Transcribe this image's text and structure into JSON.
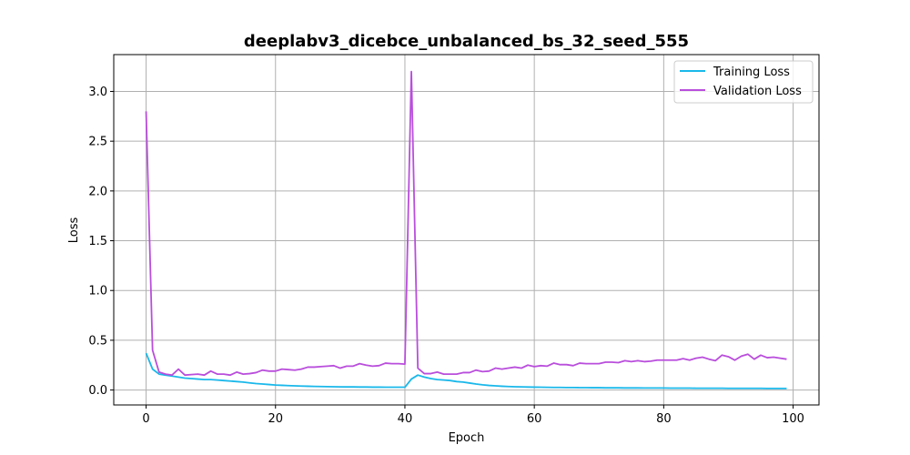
{
  "chart_data": {
    "type": "line",
    "title": "deeplabv3_dicebce_unbalanced_bs_32_seed_555",
    "xlabel": "Epoch",
    "ylabel": "Loss",
    "xlim": [
      -5,
      104
    ],
    "ylim": [
      -0.15,
      3.37
    ],
    "xticks": [
      0,
      20,
      40,
      60,
      80,
      100
    ],
    "xtick_labels": [
      "0",
      "20",
      "40",
      "60",
      "80",
      "100"
    ],
    "yticks": [
      0.0,
      0.5,
      1.0,
      1.5,
      2.0,
      2.5,
      3.0
    ],
    "ytick_labels": [
      "0.0",
      "0.5",
      "1.0",
      "1.5",
      "2.0",
      "2.5",
      "3.0"
    ],
    "grid": true,
    "legend_position": "top-right",
    "x": [
      0,
      1,
      2,
      3,
      4,
      5,
      6,
      7,
      8,
      9,
      10,
      11,
      12,
      13,
      14,
      15,
      16,
      17,
      18,
      19,
      20,
      21,
      22,
      23,
      24,
      25,
      26,
      27,
      28,
      29,
      30,
      31,
      32,
      33,
      34,
      35,
      36,
      37,
      38,
      39,
      40,
      41,
      42,
      43,
      44,
      45,
      46,
      47,
      48,
      49,
      50,
      51,
      52,
      53,
      54,
      55,
      56,
      57,
      58,
      59,
      60,
      61,
      62,
      63,
      64,
      65,
      66,
      67,
      68,
      69,
      70,
      71,
      72,
      73,
      74,
      75,
      76,
      77,
      78,
      79,
      80,
      81,
      82,
      83,
      84,
      85,
      86,
      87,
      88,
      89,
      90,
      91,
      92,
      93,
      94,
      95,
      96,
      97,
      98,
      99
    ],
    "series": [
      {
        "name": "Training Loss",
        "color": "#1ab8ea",
        "values": [
          0.37,
          0.21,
          0.16,
          0.15,
          0.14,
          0.13,
          0.12,
          0.115,
          0.11,
          0.105,
          0.105,
          0.1,
          0.095,
          0.09,
          0.085,
          0.08,
          0.072,
          0.065,
          0.06,
          0.055,
          0.05,
          0.047,
          0.044,
          0.042,
          0.04,
          0.038,
          0.036,
          0.035,
          0.034,
          0.033,
          0.032,
          0.031,
          0.031,
          0.03,
          0.03,
          0.029,
          0.029,
          0.028,
          0.028,
          0.028,
          0.028,
          0.11,
          0.15,
          0.13,
          0.115,
          0.105,
          0.1,
          0.095,
          0.085,
          0.08,
          0.07,
          0.06,
          0.052,
          0.046,
          0.042,
          0.038,
          0.035,
          0.033,
          0.032,
          0.03,
          0.029,
          0.028,
          0.027,
          0.026,
          0.026,
          0.025,
          0.025,
          0.024,
          0.024,
          0.023,
          0.023,
          0.022,
          0.022,
          0.022,
          0.021,
          0.021,
          0.021,
          0.02,
          0.02,
          0.02,
          0.02,
          0.019,
          0.019,
          0.019,
          0.019,
          0.018,
          0.018,
          0.018,
          0.018,
          0.018,
          0.017,
          0.017,
          0.017,
          0.017,
          0.017,
          0.017,
          0.016,
          0.016,
          0.016,
          0.016
        ]
      },
      {
        "name": "Validation Loss",
        "color": "#b94edc",
        "values": [
          2.8,
          0.4,
          0.18,
          0.16,
          0.15,
          0.21,
          0.15,
          0.155,
          0.16,
          0.15,
          0.19,
          0.16,
          0.16,
          0.15,
          0.18,
          0.16,
          0.165,
          0.175,
          0.2,
          0.19,
          0.19,
          0.21,
          0.205,
          0.2,
          0.21,
          0.23,
          0.23,
          0.235,
          0.24,
          0.245,
          0.22,
          0.24,
          0.24,
          0.265,
          0.25,
          0.24,
          0.245,
          0.27,
          0.265,
          0.265,
          0.26,
          3.2,
          0.22,
          0.165,
          0.165,
          0.18,
          0.16,
          0.16,
          0.16,
          0.175,
          0.175,
          0.2,
          0.185,
          0.19,
          0.22,
          0.21,
          0.22,
          0.23,
          0.22,
          0.25,
          0.235,
          0.245,
          0.24,
          0.27,
          0.255,
          0.255,
          0.245,
          0.27,
          0.265,
          0.265,
          0.265,
          0.28,
          0.28,
          0.275,
          0.295,
          0.285,
          0.295,
          0.285,
          0.29,
          0.3,
          0.3,
          0.3,
          0.3,
          0.315,
          0.3,
          0.32,
          0.33,
          0.31,
          0.295,
          0.35,
          0.335,
          0.3,
          0.34,
          0.36,
          0.31,
          0.35,
          0.325,
          0.33,
          0.32,
          0.31
        ]
      }
    ]
  }
}
